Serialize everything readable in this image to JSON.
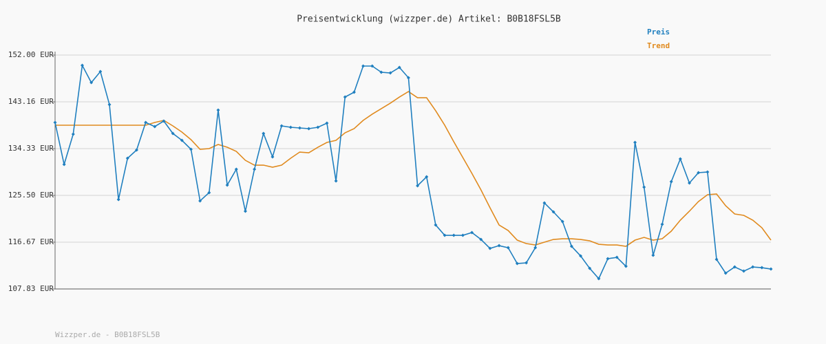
{
  "chart_data": {
    "type": "line",
    "title": "Preisentwicklung (wizzper.de) Artikel: B0B18FSL5B",
    "footer": "Wizzper.de - B0B18FSL5B",
    "categories": [
      null,
      null,
      null,
      null,
      null,
      null,
      null,
      null,
      null,
      null,
      null,
      null,
      null,
      null,
      null,
      null,
      null,
      null,
      null,
      null,
      null,
      null,
      null,
      null,
      null,
      null,
      null,
      null,
      null,
      null,
      null,
      null,
      null,
      null,
      null,
      null,
      null,
      null,
      null,
      null,
      null,
      null,
      null,
      null,
      null,
      null,
      null,
      null,
      null,
      null,
      null,
      null,
      null,
      null,
      null,
      null,
      null,
      null,
      null,
      null,
      null,
      null,
      null,
      null,
      null,
      null,
      null,
      null,
      null,
      null,
      null,
      null,
      null,
      null,
      null,
      null,
      null,
      null,
      null,
      null
    ],
    "series": [
      {
        "name": "Preis",
        "color": "#1f7fbf",
        "markers": true,
        "values": [
          139.27,
          131.34,
          137.06,
          150.05,
          146.8,
          148.88,
          142.65,
          124.72,
          132.51,
          134.07,
          139.27,
          138.49,
          139.53,
          137.19,
          135.89,
          134.2,
          124.46,
          126.02,
          141.61,
          127.45,
          130.43,
          122.51,
          130.43,
          137.19,
          132.77,
          138.62,
          138.36,
          138.23,
          138.1,
          138.36,
          139.14,
          128.22,
          144.07,
          144.98,
          149.92,
          149.92,
          148.75,
          148.62,
          149.66,
          147.71,
          127.32,
          129.0,
          119.91,
          117.96,
          117.96,
          117.96,
          118.48,
          117.18,
          115.49,
          116.01,
          115.62,
          112.63,
          112.76,
          115.62,
          124.07,
          122.38,
          120.56,
          115.88,
          114.06,
          111.72,
          109.78,
          113.54,
          113.8,
          112.11,
          135.5,
          127.06,
          114.19,
          120.04,
          128.09,
          132.38,
          127.84,
          129.79,
          129.91,
          113.41,
          110.82,
          111.98,
          111.2,
          111.98,
          111.85,
          111.59
        ]
      },
      {
        "name": "Trend",
        "color": "#e08a1e",
        "markers": false,
        "values": [
          138.75,
          138.75,
          138.75,
          138.75,
          138.75,
          138.75,
          138.75,
          138.75,
          138.75,
          138.75,
          138.75,
          139.27,
          139.66,
          138.62,
          137.45,
          136.02,
          134.2,
          134.33,
          135.11,
          134.59,
          133.81,
          132.12,
          131.21,
          131.21,
          130.82,
          131.21,
          132.51,
          133.68,
          133.55,
          134.59,
          135.5,
          135.89,
          137.32,
          138.1,
          139.66,
          140.83,
          141.87,
          142.91,
          144.07,
          145.11,
          143.94,
          143.94,
          141.48,
          138.75,
          135.63,
          132.64,
          129.65,
          126.54,
          123.16,
          119.91,
          118.87,
          117.05,
          116.4,
          116.14,
          116.66,
          117.18,
          117.31,
          117.31,
          117.18,
          116.92,
          116.27,
          116.14,
          116.14,
          115.88,
          117.05,
          117.57,
          117.05,
          117.31,
          118.74,
          120.82,
          122.51,
          124.33,
          125.63,
          125.76,
          123.55,
          121.99,
          121.73,
          120.82,
          119.39,
          117.05
        ]
      }
    ],
    "ylim": [
      107.83,
      152.0
    ],
    "yticks": [
      {
        "value": 152.0,
        "label": "152.00 EUR"
      },
      {
        "value": 143.16,
        "label": "143.16 EUR"
      },
      {
        "value": 134.33,
        "label": "134.33 EUR"
      },
      {
        "value": 125.5,
        "label": "125.50 EUR"
      },
      {
        "value": 116.67,
        "label": "116.67 EUR"
      },
      {
        "value": 107.83,
        "label": "107.83 EUR"
      }
    ],
    "grid": true,
    "legend": "top-right"
  }
}
